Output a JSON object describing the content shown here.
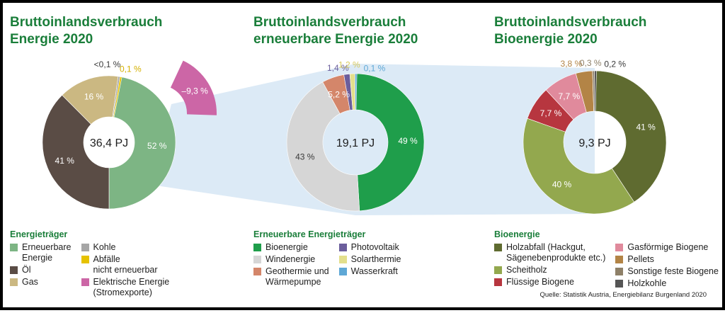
{
  "source": "Quelle: Statistik Austria, Energiebilanz Burgenland 2020",
  "charts": [
    {
      "title_lines": [
        "Bruttoinlandsverbrauch",
        "Energie 2020"
      ],
      "center_label": "36,4 PJ",
      "legend_title": "Energieträger",
      "legend_columns": [
        [
          {
            "label": "Erneuerbare\nEnergie",
            "color": "#7db584"
          },
          {
            "label": "Öl",
            "color": "#5a4c45"
          },
          {
            "label": "Gas",
            "color": "#cbb882"
          }
        ],
        [
          {
            "label": "Kohle",
            "color": "#a6a6a6"
          },
          {
            "label": "Abfälle\nnicht erneuerbar",
            "color": "#e6c200"
          },
          {
            "label": "Elektrische Energie\n(Stromexporte)",
            "color": "#cc66a6"
          }
        ]
      ]
    },
    {
      "title_lines": [
        "Bruttoinlandsverbrauch",
        "erneuerbare Energie 2020"
      ],
      "center_label": "19,1 PJ",
      "legend_title": "Erneuerbare Energieträger",
      "legend_columns": [
        [
          {
            "label": "Bioenergie",
            "color": "#1f9e4b"
          },
          {
            "label": "Windenergie",
            "color": "#d6d6d6"
          },
          {
            "label": "Geothermie und\nWärmepumpe",
            "color": "#d4866a"
          }
        ],
        [
          {
            "label": "Photovoltaik",
            "color": "#6b5e9c"
          },
          {
            "label": "Solarthermie",
            "color": "#e3df8c"
          },
          {
            "label": "Wasserkraft",
            "color": "#5fa8d6"
          }
        ]
      ]
    },
    {
      "title_lines": [
        "Bruttoinlandsverbrauch",
        "Bioenergie 2020"
      ],
      "center_label": "9,3 PJ",
      "legend_title": "Bioenergie",
      "legend_columns": [
        [
          {
            "label": "Holzabfall (Hackgut,\nSägenebenprodukte etc.)",
            "color": "#5f6b30"
          },
          {
            "label": "Scheitholz",
            "color": "#93a84e"
          },
          {
            "label": "Flüssige Biogene",
            "color": "#b7363f"
          }
        ],
        [
          {
            "label": "Gasförmige Biogene",
            "color": "#e08a9c"
          },
          {
            "label": "Pellets",
            "color": "#b38446"
          },
          {
            "label": "Sonstige feste Biogene",
            "color": "#8e8068"
          },
          {
            "label": "Holzkohle",
            "color": "#555555"
          }
        ]
      ]
    }
  ],
  "chart_data": [
    {
      "type": "pie",
      "title": "Bruttoinlandsverbrauch Energie 2020",
      "total": "36,4 PJ",
      "categories": [
        "Erneuerbare Energie",
        "Öl",
        "Gas",
        "Kohle",
        "Abfälle nicht erneuerbar"
      ],
      "values": [
        52,
        41,
        16,
        0.1,
        0.1
      ],
      "value_labels": [
        "52 %",
        "41 %",
        "16 %",
        "<0,1 %",
        "0,1 %"
      ],
      "label_colors": [
        "#ffffff",
        "#ffffff",
        "#ffffff",
        "#3a3a3a",
        "#d4b000"
      ],
      "colors": [
        "#7db584",
        "#5a4c45",
        "#cbb882",
        "#a6a6a6",
        "#e6c200"
      ],
      "extra_segment": {
        "name": "Elektrische Energie (Stromexporte)",
        "value": -9.3,
        "label": "–9,3 %",
        "color": "#cc66a6"
      }
    },
    {
      "type": "pie",
      "title": "Bruttoinlandsverbrauch erneuerbare Energie 2020",
      "total": "19,1 PJ",
      "categories": [
        "Bioenergie",
        "Windenergie",
        "Geothermie und Wärmepumpe",
        "Photovoltaik",
        "Solarthermie",
        "Wasserkraft"
      ],
      "values": [
        49,
        43,
        5.2,
        1.4,
        1.2,
        0.1
      ],
      "value_labels": [
        "49 %",
        "43 %",
        "5,2 %",
        "1,4 %",
        "1,2 %",
        "0,1 %"
      ],
      "label_colors": [
        "#ffffff",
        "#3a3a3a",
        "#ffffff",
        "#6b5e9c",
        "#d8c95a",
        "#5fa8d6"
      ],
      "colors": [
        "#1f9e4b",
        "#d6d6d6",
        "#d4866a",
        "#6b5e9c",
        "#e3df8c",
        "#5fa8d6"
      ]
    },
    {
      "type": "pie",
      "title": "Bruttoinlandsverbrauch Bioenergie 2020",
      "total": "9,3 PJ",
      "categories": [
        "Holzabfall (Hackgut, Sägenebenprodukte etc.)",
        "Scheitholz",
        "Flüssige Biogene",
        "Gasförmige Biogene",
        "Pellets",
        "Sonstige feste Biogene",
        "Holzkohle"
      ],
      "values": [
        41,
        40,
        7.7,
        7.7,
        3.8,
        0.3,
        0.2
      ],
      "value_labels": [
        "41 %",
        "40 %",
        "7,7 %",
        "7,7 %",
        "3,8 %",
        "0,3 %",
        "0,2 %"
      ],
      "label_colors": [
        "#ffffff",
        "#ffffff",
        "#ffffff",
        "#ffffff",
        "#b38446",
        "#8e8068",
        "#3a3a3a"
      ],
      "colors": [
        "#5f6b30",
        "#93a84e",
        "#b7363f",
        "#e08a9c",
        "#b38446",
        "#8e8068",
        "#555555"
      ]
    }
  ]
}
